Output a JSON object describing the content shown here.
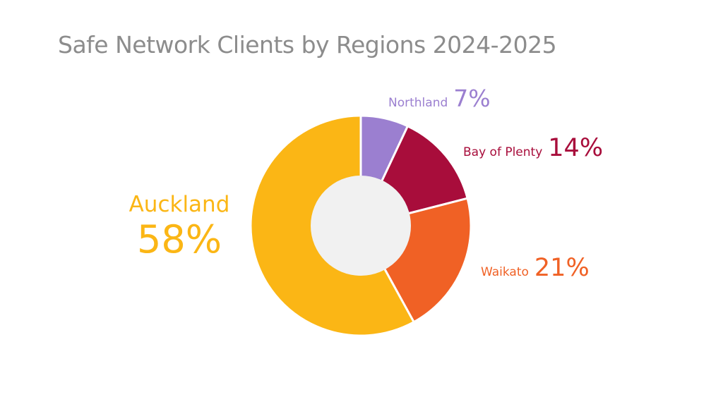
{
  "title": "Safe Network Clients by Regions 2024-2025",
  "chart_data": {
    "type": "pie",
    "title": "Safe Network Clients by Regions 2024-2025",
    "slices": [
      {
        "label": "Northland",
        "value": 7,
        "display": "7%",
        "color": "#9b7fd0"
      },
      {
        "label": "Bay of Plenty",
        "value": 14,
        "display": "14%",
        "color": "#a80d3b"
      },
      {
        "label": "Waikato",
        "value": 21,
        "display": "21%",
        "color": "#f06125"
      },
      {
        "label": "Auckland",
        "value": 58,
        "display": "58%",
        "color": "#fbb615"
      }
    ],
    "center_color": "#f1f1f1"
  }
}
